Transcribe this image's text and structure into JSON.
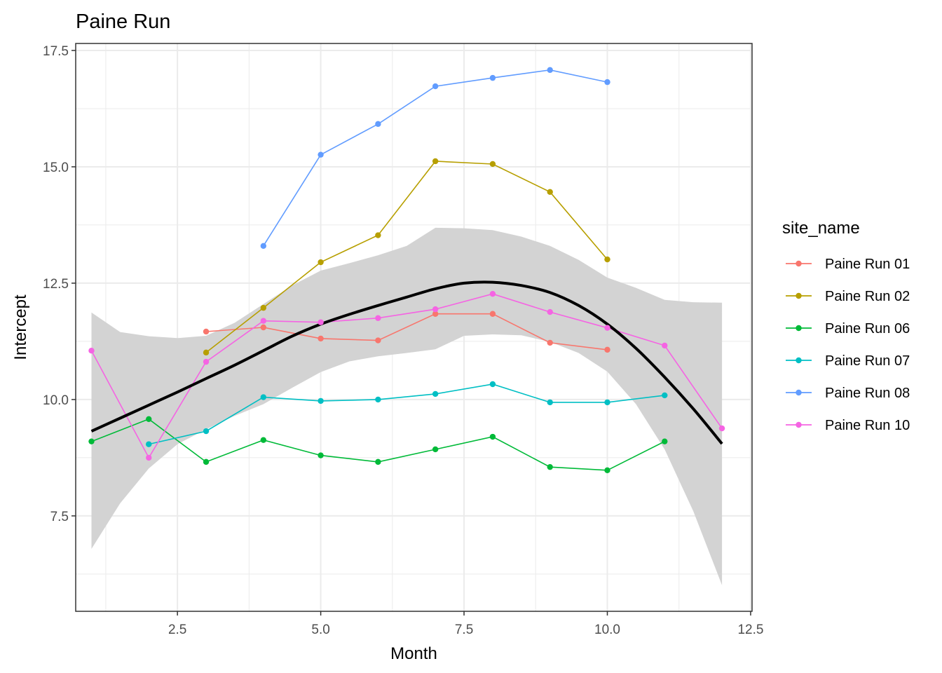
{
  "chart_data": {
    "type": "line",
    "title": "Paine Run",
    "xlabel": "Month",
    "ylabel": "Intercept",
    "xlim": [
      0.725,
      12.525
    ],
    "ylim": [
      5.45,
      17.65
    ],
    "x_ticks": [
      2.5,
      5.0,
      7.5,
      10.0,
      12.5
    ],
    "x_tick_labels": [
      "2.5",
      "5.0",
      "7.5",
      "10.0",
      "12.5"
    ],
    "y_ticks": [
      7.5,
      10.0,
      12.5,
      15.0,
      17.5
    ],
    "y_tick_labels": [
      "7.5",
      "10.0",
      "12.5",
      "15.0",
      "17.5"
    ],
    "grid": true,
    "legend": {
      "title": "site_name",
      "position": "right"
    },
    "series": [
      {
        "name": "Paine Run 01",
        "color": "#F8766D",
        "x": [
          3,
          4,
          5,
          6,
          7,
          8,
          9,
          10
        ],
        "y": [
          11.46,
          11.55,
          11.31,
          11.27,
          11.84,
          11.84,
          11.22,
          11.07
        ]
      },
      {
        "name": "Paine Run 02",
        "color": "#B79F00",
        "x": [
          3,
          4,
          5,
          6,
          7,
          8,
          9,
          10
        ],
        "y": [
          11.01,
          11.97,
          12.95,
          13.53,
          15.12,
          15.06,
          14.46,
          13.01
        ]
      },
      {
        "name": "Paine Run 06",
        "color": "#00BA38",
        "x": [
          1,
          2,
          3,
          4,
          5,
          6,
          7,
          8,
          9,
          10,
          11
        ],
        "y": [
          9.1,
          9.58,
          8.66,
          9.13,
          8.8,
          8.66,
          8.93,
          9.2,
          8.55,
          8.48,
          9.1
        ]
      },
      {
        "name": "Paine Run 07",
        "color": "#00BFC4",
        "x": [
          2,
          3,
          4,
          5,
          6,
          7,
          8,
          9,
          10,
          11
        ],
        "y": [
          9.04,
          9.32,
          10.05,
          9.97,
          10.0,
          10.12,
          10.33,
          9.94,
          9.94,
          10.09
        ]
      },
      {
        "name": "Paine Run 08",
        "color": "#619CFF",
        "x": [
          4,
          5,
          6,
          7,
          8,
          9,
          10
        ],
        "y": [
          13.3,
          15.26,
          15.92,
          16.73,
          16.91,
          17.08,
          16.82
        ]
      },
      {
        "name": "Paine Run 10",
        "color": "#F564E3",
        "x": [
          1,
          2,
          3,
          4,
          5,
          6,
          7,
          8,
          9,
          10,
          11,
          12
        ],
        "y": [
          11.05,
          8.75,
          10.81,
          11.69,
          11.66,
          11.75,
          11.94,
          12.27,
          11.88,
          11.54,
          11.16,
          9.38
        ]
      }
    ],
    "smooth": {
      "name": "loess",
      "color": "#000000",
      "band_color": "#d3d3d3",
      "x": [
        1,
        1.5,
        2,
        2.5,
        3,
        3.5,
        4,
        4.5,
        5,
        5.5,
        6,
        6.5,
        7,
        7.5,
        8,
        8.5,
        9,
        9.5,
        10,
        10.5,
        11,
        11.5,
        12
      ],
      "y": [
        9.32,
        9.6,
        9.88,
        10.16,
        10.45,
        10.74,
        11.05,
        11.36,
        11.62,
        11.83,
        12.02,
        12.2,
        12.38,
        12.5,
        12.52,
        12.45,
        12.3,
        12.02,
        11.62,
        11.1,
        10.48,
        9.8,
        9.05
      ],
      "ymin": [
        6.79,
        7.77,
        8.52,
        9.04,
        9.36,
        9.65,
        9.9,
        10.25,
        10.59,
        10.82,
        10.93,
        11.0,
        11.08,
        11.37,
        11.4,
        11.38,
        11.24,
        11.0,
        10.6,
        9.9,
        8.93,
        7.6,
        6.01
      ],
      "ymax": [
        11.87,
        11.45,
        11.36,
        11.32,
        11.37,
        11.65,
        12.05,
        12.45,
        12.77,
        12.93,
        13.1,
        13.3,
        13.69,
        13.68,
        13.64,
        13.5,
        13.3,
        13.0,
        12.62,
        12.4,
        12.14,
        12.09,
        12.08
      ]
    }
  }
}
